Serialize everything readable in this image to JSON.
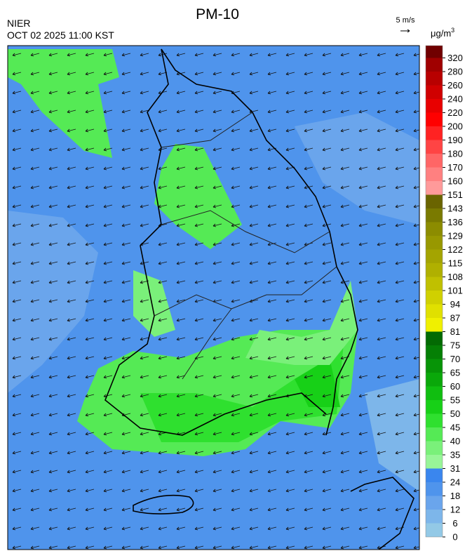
{
  "title": "PM-10",
  "agency": "NIER",
  "timestamp": "OCT 02 2025 11:00 KST",
  "wind_reference": "5 m/s",
  "unit": {
    "base": "μg/m",
    "sup": "3"
  },
  "scale": {
    "ticks": [
      0,
      6,
      12,
      18,
      24,
      31,
      35,
      40,
      45,
      50,
      55,
      60,
      65,
      70,
      75,
      81,
      87,
      94,
      101,
      108,
      115,
      122,
      129,
      136,
      143,
      151,
      160,
      170,
      180,
      190,
      200,
      220,
      240,
      260,
      280,
      320
    ],
    "colors": [
      "#93c9e6",
      "#7db6ea",
      "#6aa5ec",
      "#4f94ec",
      "#3a86ee",
      "#98f598",
      "#7af07a",
      "#55ea55",
      "#2fe02f",
      "#17d017",
      "#10be10",
      "#0aa80a",
      "#079407",
      "#057f05",
      "#036a03",
      "#f0f000",
      "#e0e000",
      "#d0d000",
      "#c0c000",
      "#b0b000",
      "#a4a400",
      "#989800",
      "#8c8c00",
      "#7a7a00",
      "#6a6400",
      "#ff9a9a",
      "#ff8080",
      "#ff6666",
      "#ff4444",
      "#ff2222",
      "#ff0000",
      "#e80000",
      "#d00000",
      "#b80000",
      "#a00000",
      "#700000"
    ]
  }
}
